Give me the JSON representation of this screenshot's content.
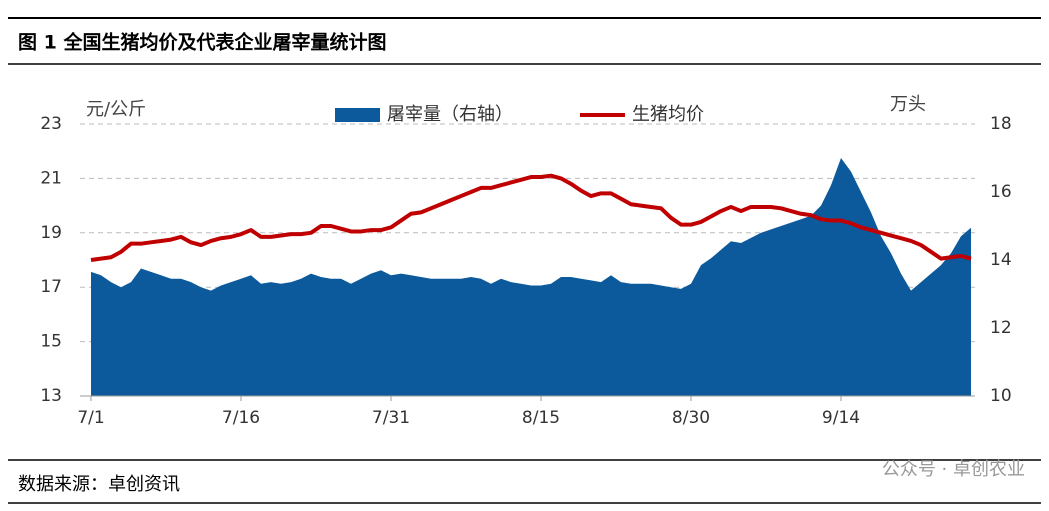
{
  "header": {
    "title": "图 1  全国生猪均价及代表企业屠宰量统计图"
  },
  "chart_data": {
    "type": "combo",
    "y_label": "元/公斤",
    "y2_label": "万头",
    "categories": [
      "7/1",
      null,
      null,
      null,
      null,
      null,
      null,
      null,
      null,
      null,
      null,
      null,
      null,
      null,
      null,
      "7/16",
      null,
      null,
      null,
      null,
      null,
      null,
      null,
      null,
      null,
      null,
      null,
      null,
      null,
      null,
      "7/31",
      null,
      null,
      null,
      null,
      null,
      null,
      null,
      null,
      null,
      null,
      null,
      null,
      null,
      null,
      "8/15",
      null,
      null,
      null,
      null,
      null,
      null,
      null,
      null,
      null,
      null,
      null,
      null,
      null,
      null,
      "8/30",
      null,
      null,
      null,
      null,
      null,
      null,
      null,
      null,
      null,
      null,
      null,
      null,
      null,
      null,
      "9/14",
      null,
      null,
      null,
      null,
      null,
      null,
      null,
      null,
      null,
      null,
      null,
      null,
      null
    ],
    "series": [
      {
        "name": "屠宰量（右轴）",
        "type": "area",
        "axis": "y2",
        "color": "#0c5a9c",
        "values": [
          13.65,
          13.55,
          13.35,
          13.2,
          13.35,
          13.75,
          13.65,
          13.55,
          13.45,
          13.45,
          13.35,
          13.2,
          13.1,
          13.25,
          13.35,
          13.45,
          13.55,
          13.3,
          13.35,
          13.3,
          13.35,
          13.45,
          13.6,
          13.5,
          13.45,
          13.45,
          13.3,
          13.45,
          13.6,
          13.7,
          13.55,
          13.6,
          13.55,
          13.5,
          13.45,
          13.45,
          13.45,
          13.45,
          13.5,
          13.45,
          13.3,
          13.45,
          13.35,
          13.3,
          13.25,
          13.25,
          13.3,
          13.5,
          13.5,
          13.45,
          13.4,
          13.35,
          13.55,
          13.35,
          13.3,
          13.3,
          13.3,
          13.25,
          13.2,
          13.15,
          13.3,
          13.85,
          14.05,
          14.3,
          14.55,
          14.5,
          14.65,
          14.8,
          14.9,
          15.0,
          15.1,
          15.2,
          15.3,
          15.6,
          16.2,
          17.0,
          16.6,
          16.0,
          15.4,
          14.7,
          14.2,
          13.6,
          13.1,
          13.35,
          13.6,
          13.85,
          14.2,
          14.7,
          14.95
        ]
      },
      {
        "name": "生猪均价",
        "type": "line",
        "axis": "y",
        "color": "#c00000",
        "values": [
          18.0,
          18.05,
          18.1,
          18.3,
          18.6,
          18.6,
          18.65,
          18.7,
          18.75,
          18.85,
          18.65,
          18.55,
          18.7,
          18.8,
          18.85,
          18.95,
          19.1,
          18.85,
          18.85,
          18.9,
          18.95,
          18.95,
          19.0,
          19.25,
          19.25,
          19.15,
          19.05,
          19.05,
          19.1,
          19.1,
          19.2,
          19.45,
          19.7,
          19.75,
          19.9,
          20.05,
          20.2,
          20.35,
          20.5,
          20.65,
          20.65,
          20.75,
          20.85,
          20.95,
          21.05,
          21.05,
          21.1,
          21.0,
          20.8,
          20.55,
          20.35,
          20.45,
          20.45,
          20.25,
          20.05,
          20.0,
          19.95,
          19.9,
          19.55,
          19.3,
          19.3,
          19.4,
          19.6,
          19.8,
          19.95,
          19.8,
          19.95,
          19.95,
          19.95,
          19.9,
          19.8,
          19.7,
          19.65,
          19.5,
          19.45,
          19.45,
          19.35,
          19.2,
          19.1,
          19.0,
          18.9,
          18.8,
          18.7,
          18.55,
          18.3,
          18.05,
          18.1,
          18.15,
          18.05
        ]
      }
    ],
    "ylim": [
      13,
      23
    ],
    "yticks": [
      13,
      15,
      17,
      19,
      21,
      23
    ],
    "y2lim": [
      10,
      18
    ],
    "y2ticks": [
      10,
      12,
      14,
      16,
      18
    ],
    "grid": true,
    "legend": "top"
  },
  "footer": {
    "source": "数据来源：卓创资讯",
    "watermark": "公众号 · 卓创农业"
  }
}
